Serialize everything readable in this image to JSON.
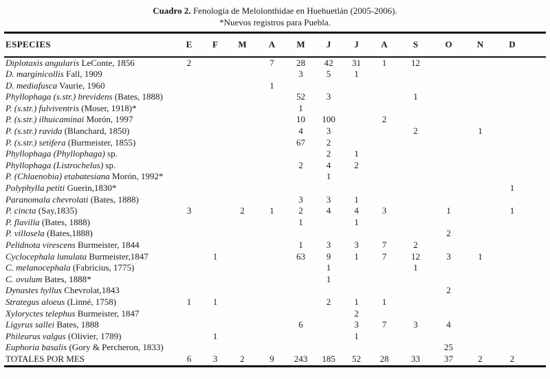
{
  "title": {
    "label_bold": "Cuadro 2.",
    "label_rest": " Fenología de Melolonthidae en Huehuetlán (2005-2006).",
    "subtitle": "*Nuevos registros para Puebla."
  },
  "table": {
    "species_header": "ESPECIES",
    "month_headers": [
      "E",
      "F",
      "M",
      "A",
      "M",
      "J",
      "J",
      "A",
      "S",
      "O",
      "N",
      "D"
    ],
    "rows": [
      {
        "name_italic": "Diplotaxis angularis",
        "name_roman": " LeConte, 1856",
        "values": [
          "2",
          "",
          "",
          "7",
          "28",
          "42",
          "31",
          "1",
          "12",
          "",
          "",
          ""
        ]
      },
      {
        "name_italic": "D. marginicollis",
        "name_roman": " Fall, 1909",
        "values": [
          "",
          "",
          "",
          "",
          "3",
          "5",
          "1",
          "",
          "",
          "",
          "",
          ""
        ]
      },
      {
        "name_italic": "D. mediafusca",
        "name_roman": " Vaurie, 1960",
        "values": [
          "",
          "",
          "",
          "1",
          "",
          "",
          "",
          "",
          "",
          "",
          "",
          ""
        ]
      },
      {
        "name_italic": "Phyllophaga (s.str.) brevidens",
        "name_roman": " (Bates, 1888)",
        "values": [
          "",
          "",
          "",
          "",
          "52",
          "3",
          "",
          "",
          "1",
          "",
          "",
          ""
        ]
      },
      {
        "name_italic": "P. (s.str.) fulviventris",
        "name_roman": " (Moser, 1918)*",
        "values": [
          "",
          "",
          "",
          "",
          "1",
          "",
          "",
          "",
          "",
          "",
          "",
          ""
        ]
      },
      {
        "name_italic": "P. (s.str.) ilhuicaminai",
        "name_roman": " Morón, 1997",
        "values": [
          "",
          "",
          "",
          "",
          "10",
          "100",
          "",
          "2",
          "",
          "",
          "",
          ""
        ]
      },
      {
        "name_italic": "P. (s.str.) ravida",
        "name_roman": " (Blanchard, 1850)",
        "values": [
          "",
          "",
          "",
          "",
          "4",
          "3",
          "",
          "",
          "2",
          "",
          "1",
          ""
        ]
      },
      {
        "name_italic": "P. (s.str.) setifera",
        "name_roman": " (Burmeister, 1855)",
        "values": [
          "",
          "",
          "",
          "",
          "67",
          "2",
          "",
          "",
          "",
          "",
          "",
          ""
        ]
      },
      {
        "name_italic": "Phyllophaga (Phyllophaga)",
        "name_roman": " sp.",
        "values": [
          "",
          "",
          "",
          "",
          "",
          "2",
          "1",
          "",
          "",
          "",
          "",
          ""
        ]
      },
      {
        "name_italic": "Phyllophaga (Listrochelus)",
        "name_roman": " sp.",
        "values": [
          "",
          "",
          "",
          "",
          "2",
          "4",
          "2",
          "",
          "",
          "",
          "",
          ""
        ]
      },
      {
        "name_italic": "P. (Chlaenobia) etabatesiana",
        "name_roman": " Morón, 1992*",
        "values": [
          "",
          "",
          "",
          "",
          "",
          "1",
          "",
          "",
          "",
          "",
          "",
          ""
        ]
      },
      {
        "name_italic": "Polyphylla petiti",
        "name_roman": " Guerin,1830*",
        "values": [
          "",
          "",
          "",
          "",
          "",
          "",
          "",
          "",
          "",
          "",
          "",
          "1"
        ]
      },
      {
        "name_italic": "Paranomala chevrolati",
        "name_roman": " (Bates, 1888)",
        "values": [
          "",
          "",
          "",
          "",
          "3",
          "3",
          "1",
          "",
          "",
          "",
          "",
          ""
        ]
      },
      {
        "name_italic": "P. cincta",
        "name_roman": " (Say,1835)",
        "values": [
          "3",
          "",
          "2",
          "1",
          "2",
          "4",
          "4",
          "3",
          "",
          "1",
          "",
          "1"
        ]
      },
      {
        "name_italic": "P. flavilla",
        "name_roman": " (Bates, 1888)",
        "values": [
          "",
          "",
          "",
          "",
          "1",
          "",
          "1",
          "",
          "",
          "",
          "",
          ""
        ]
      },
      {
        "name_italic": "P. villosela",
        "name_roman": " (Bates,1888)",
        "values": [
          "",
          "",
          "",
          "",
          "",
          "",
          "",
          "",
          "",
          "2",
          "",
          ""
        ]
      },
      {
        "name_italic": "Pelidnota virescens",
        "name_roman": " Burmeister, 1844",
        "values": [
          "",
          "",
          "",
          "",
          "1",
          "3",
          "3",
          "7",
          "2",
          "",
          "",
          ""
        ]
      },
      {
        "name_italic": "Cyclocephala lunulata",
        "name_roman": " Burmeister,1847",
        "values": [
          "",
          "1",
          "",
          "",
          "63",
          "9",
          "1",
          "7",
          "12",
          "3",
          "1",
          ""
        ]
      },
      {
        "name_italic": "C. melanocephala",
        "name_roman": " (Fabricius, 1775)",
        "values": [
          "",
          "",
          "",
          "",
          "",
          "1",
          "",
          "",
          "1",
          "",
          "",
          ""
        ]
      },
      {
        "name_italic": "C. ovulum",
        "name_roman": " Bates, 1888*",
        "values": [
          "",
          "",
          "",
          "",
          "",
          "1",
          "",
          "",
          "",
          "",
          "",
          ""
        ]
      },
      {
        "name_italic": "Dynastes hyllus",
        "name_roman": " Chevrolat,1843",
        "values": [
          "",
          "",
          "",
          "",
          "",
          "",
          "",
          "",
          "",
          "2",
          "",
          ""
        ]
      },
      {
        "name_italic": "Strategus aloeus",
        "name_roman": " (Linné, 1758)",
        "values": [
          "1",
          "1",
          "",
          "",
          "",
          "2",
          "1",
          "1",
          "",
          "",
          "",
          ""
        ]
      },
      {
        "name_italic": "Xyloryctes telephus",
        "name_roman": " Burmeister, 1847",
        "values": [
          "",
          "",
          "",
          "",
          "",
          "",
          "2",
          "",
          "",
          "",
          "",
          ""
        ]
      },
      {
        "name_italic": "Ligyrus sallei",
        "name_roman": " Bates, 1888",
        "values": [
          "",
          "",
          "",
          "",
          "6",
          "",
          "3",
          "7",
          "3",
          "4",
          "",
          ""
        ]
      },
      {
        "name_italic": "Phileurus valgus",
        "name_roman": " (Olivier, 1789)",
        "values": [
          "",
          "1",
          "",
          "",
          "",
          "",
          "1",
          "",
          "",
          "",
          "",
          ""
        ]
      },
      {
        "name_italic": "Euphoria basalis",
        "name_roman": " (Gory & Percheron, 1833)",
        "values": [
          "",
          "",
          "",
          "",
          "",
          "",
          "",
          "",
          "",
          "25",
          "",
          ""
        ]
      },
      {
        "name_italic": "",
        "name_roman": "TOTALES POR MES",
        "values": [
          "6",
          "3",
          "2",
          "9",
          "243",
          "185",
          "52",
          "28",
          "33",
          "37",
          "2",
          "2"
        ]
      }
    ]
  },
  "chart_data": {
    "type": "table",
    "title": "Cuadro 2. Fenología de Melolonthidae en Huehuetlán (2005-2006)",
    "columns": [
      "E",
      "F",
      "M",
      "A",
      "M",
      "J",
      "J",
      "A",
      "S",
      "O",
      "N",
      "D"
    ],
    "totals_by_month": [
      6,
      3,
      2,
      9,
      243,
      185,
      52,
      28,
      33,
      37,
      2,
      2
    ]
  }
}
